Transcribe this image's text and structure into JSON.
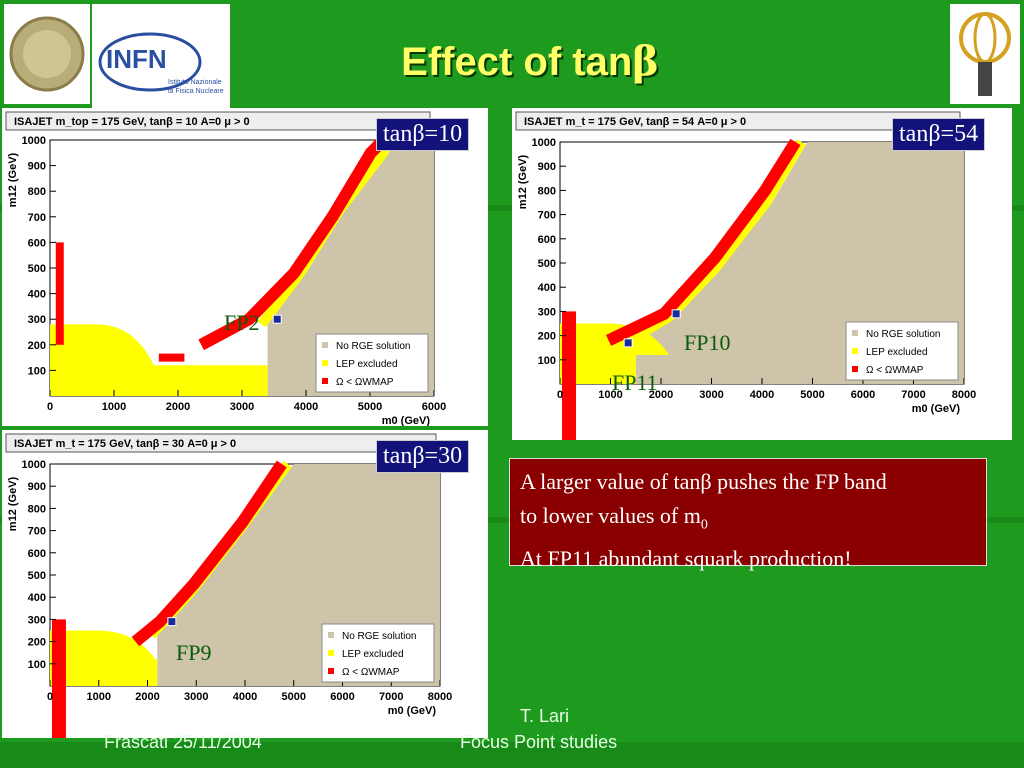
{
  "title_text": "Effect of tan",
  "title_greek": "β",
  "colors": {
    "red": "#ff0000",
    "yellow": "#ffff00",
    "tan": "#cdc4aa",
    "fp": "#1a2a9a",
    "band": "#12127a",
    "note": "#8a0000",
    "bg": "#1e9a1e"
  },
  "note": {
    "line1a": "A larger value of tanβ pushes the FP band",
    "line1b": "to lower values of m",
    "line1sub": "0",
    "line2": "At FP11 abundant squark production!"
  },
  "footer": {
    "author": "T. Lari",
    "place": "Frascati 25/11/2004",
    "talk": "Focus Point studies"
  },
  "legend": {
    "rge": "No RGE solution",
    "lep": "LEP excluded",
    "omega": "Ω < Ω",
    "omega_sub": "WMAP"
  },
  "chart_data": [
    {
      "type": "scatter",
      "title": "ISAJET m_top = 175 GeV, tanβ = 10 A=0 μ > 0",
      "tag": "tanβ=10",
      "xlabel": "m0 (GeV)",
      "ylabel": "m12 (GeV)",
      "xlim": [
        0,
        6000
      ],
      "ylim": [
        0,
        1000
      ],
      "xticks": [
        0,
        1000,
        2000,
        3000,
        4000,
        5000,
        6000
      ],
      "yticks": [
        100,
        200,
        300,
        400,
        500,
        600,
        700,
        800,
        900,
        1000
      ],
      "fp_points": [
        {
          "label": "FP2",
          "x": 3550,
          "y": 300
        }
      ],
      "regions": {
        "no_rge_edge": [
          [
            3400,
            280
          ],
          [
            4000,
            480
          ],
          [
            4600,
            720
          ],
          [
            5300,
            950
          ],
          [
            5400,
            1000
          ]
        ],
        "lep_excluded_ymax": 280,
        "wmap_band": [
          [
            2550,
            200
          ],
          [
            3300,
            300
          ],
          [
            4000,
            480
          ],
          [
            4600,
            700
          ],
          [
            5200,
            950
          ],
          [
            5400,
            1000
          ]
        ],
        "wmap_low": [
          [
            1700,
            150
          ],
          [
            2100,
            150
          ]
        ]
      },
      "legend_position": "bottom-right"
    },
    {
      "type": "scatter",
      "title": "ISAJET m_t = 175 GeV, tanβ = 54 A=0 μ > 0",
      "tag": "tanβ=54",
      "xlabel": "m0 (GeV)",
      "ylabel": "m12 (GeV)",
      "xlim": [
        0,
        8000
      ],
      "ylim": [
        0,
        1000
      ],
      "xticks": [
        0,
        1000,
        2000,
        3000,
        4000,
        5000,
        6000,
        7000,
        8000
      ],
      "yticks": [
        100,
        200,
        300,
        400,
        500,
        600,
        700,
        800,
        900,
        1000
      ],
      "fp_points": [
        {
          "label": "FP10",
          "x": 2300,
          "y": 290
        },
        {
          "label": "FP11",
          "x": 1350,
          "y": 170
        }
      ],
      "regions": {
        "no_rge_edge": [
          [
            1500,
            180
          ],
          [
            2300,
            280
          ],
          [
            3200,
            480
          ],
          [
            4200,
            750
          ],
          [
            4900,
            1000
          ]
        ],
        "lep_excluded_ymax": 250,
        "wmap_band": [
          [
            1200,
            180
          ],
          [
            2300,
            290
          ],
          [
            3300,
            520
          ],
          [
            4300,
            800
          ],
          [
            4900,
            1000
          ]
        ]
      },
      "legend_position": "bottom-right"
    },
    {
      "type": "scatter",
      "title": "ISAJET m_t = 175 GeV, tanβ = 30 A=0 μ > 0",
      "tag": "tanβ=30",
      "xlabel": "m0 (GeV)",
      "ylabel": "m12 (GeV)",
      "xlim": [
        0,
        8000
      ],
      "ylim": [
        0,
        1000
      ],
      "xticks": [
        0,
        1000,
        2000,
        3000,
        4000,
        5000,
        6000,
        7000,
        8000
      ],
      "yticks": [
        100,
        200,
        300,
        400,
        500,
        600,
        700,
        800,
        900,
        1000
      ],
      "fp_points": [
        {
          "label": "FP9",
          "x": 2500,
          "y": 290
        }
      ],
      "regions": {
        "no_rge_edge": [
          [
            2200,
            230
          ],
          [
            3000,
            420
          ],
          [
            4000,
            700
          ],
          [
            5000,
            1000
          ]
        ],
        "lep_excluded_ymax": 250,
        "wmap_band": [
          [
            2000,
            200
          ],
          [
            2500,
            290
          ],
          [
            3200,
            460
          ],
          [
            4200,
            740
          ],
          [
            5000,
            1000
          ]
        ]
      },
      "legend_position": "bottom-right"
    }
  ]
}
